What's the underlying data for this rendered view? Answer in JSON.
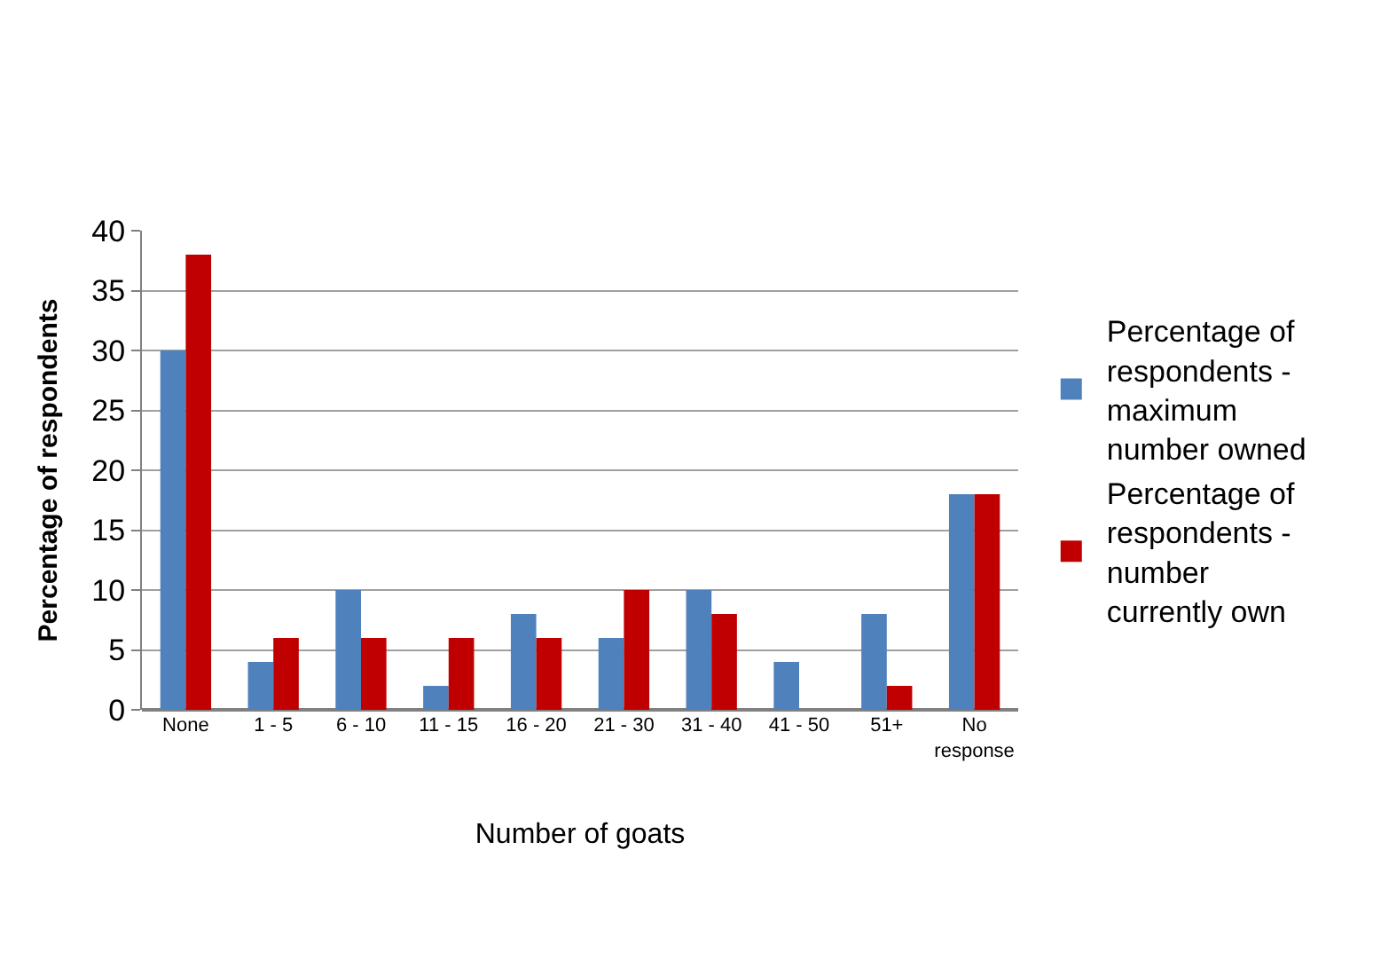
{
  "chart_data": {
    "type": "bar",
    "xlabel": "Number of goats",
    "ylabel": "Percentage of respondents",
    "categories": [
      "None",
      "1 - 5",
      "6 - 10",
      "11 - 15",
      "16 - 20",
      "21 - 30",
      "31 - 40",
      "41 - 50",
      "51+",
      "No response"
    ],
    "series": [
      {
        "name": "Percentage of respondents - maximum number owned",
        "color": "#4f81bd",
        "values": [
          30,
          4,
          10,
          2,
          8,
          6,
          10,
          4,
          8,
          18
        ]
      },
      {
        "name": "Percentage of respondents - number currently own",
        "color": "#c00000",
        "values": [
          38,
          6,
          6,
          6,
          6,
          10,
          8,
          0,
          2,
          18
        ]
      }
    ],
    "ylim": [
      0,
      40
    ],
    "yticks": [
      0,
      5,
      10,
      15,
      20,
      25,
      30,
      35,
      40
    ],
    "grid": "y",
    "legend": "right"
  }
}
